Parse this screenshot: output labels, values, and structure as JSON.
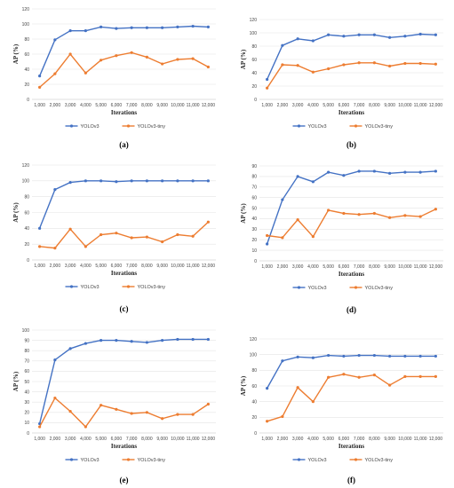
{
  "chart_data": [
    {
      "type": "line",
      "caption": "(a)",
      "categories": [
        "1,000",
        "2,000",
        "3,000",
        "4,000",
        "5,000",
        "6,000",
        "7,000",
        "8,000",
        "9,000",
        "10,000",
        "11,000",
        "12,000"
      ],
      "xlabel": "Iterations",
      "ylabel": "AP (%)",
      "ylim": [
        0,
        120
      ],
      "yticks": [
        0,
        20,
        40,
        60,
        80,
        100,
        120
      ],
      "grid": true,
      "legend": "bottom",
      "series": [
        {
          "name": "YOLOv3",
          "color": "#4472C4",
          "values": [
            31,
            79,
            91,
            91,
            96,
            94,
            95,
            95,
            95,
            96,
            97,
            96
          ]
        },
        {
          "name": "YOLOv3-tiny",
          "color": "#ED7D31",
          "values": [
            16,
            34,
            60,
            35,
            52,
            58,
            62,
            56,
            47,
            53,
            54,
            43
          ]
        }
      ]
    },
    {
      "type": "line",
      "caption": "(b)",
      "categories": [
        "1,000",
        "2,000",
        "3,000",
        "4,000",
        "5,000",
        "6,000",
        "7,000",
        "8,000",
        "9,000",
        "10,000",
        "11,000",
        "12,000"
      ],
      "xlabel": "Iterations",
      "ylabel": "AP (%)",
      "ylim": [
        0,
        120
      ],
      "yticks": [
        0,
        20,
        40,
        60,
        80,
        100,
        120
      ],
      "grid": true,
      "legend": "bottom",
      "series": [
        {
          "name": "YOLOv3",
          "color": "#4472C4",
          "values": [
            30,
            81,
            91,
            88,
            97,
            95,
            97,
            97,
            93,
            95,
            98,
            97
          ]
        },
        {
          "name": "YOLOv3-tiny",
          "color": "#ED7D31",
          "values": [
            17,
            52,
            51,
            41,
            46,
            52,
            55,
            55,
            50,
            54,
            54,
            53
          ]
        }
      ]
    },
    {
      "type": "line",
      "caption": "(c)",
      "categories": [
        "1,000",
        "2,000",
        "3,000",
        "4,000",
        "5,000",
        "6,000",
        "7,000",
        "8,000",
        "9,000",
        "10,000",
        "11,000",
        "12,000"
      ],
      "xlabel": "Iterations",
      "ylabel": "AP (%)",
      "ylim": [
        0,
        120
      ],
      "yticks": [
        0,
        20,
        40,
        60,
        80,
        100,
        120
      ],
      "grid": true,
      "legend": "bottom",
      "series": [
        {
          "name": "YOLOv3",
          "color": "#4472C4",
          "values": [
            40,
            89,
            98,
            100,
            100,
            99,
            100,
            100,
            100,
            100,
            100,
            100
          ]
        },
        {
          "name": "YOLOv3-tiny",
          "color": "#ED7D31",
          "values": [
            17,
            15,
            39,
            17,
            32,
            34,
            28,
            29,
            23,
            32,
            30,
            48
          ]
        }
      ]
    },
    {
      "type": "line",
      "caption": "(d)",
      "categories": [
        "1,000",
        "2,000",
        "3,000",
        "4,000",
        "5,000",
        "6,000",
        "7,000",
        "8,000",
        "9,000",
        "10,000",
        "11,000",
        "12,000"
      ],
      "xlabel": "Iterations",
      "ylabel": "AP (%)",
      "ylim": [
        0,
        90
      ],
      "yticks": [
        0,
        10,
        20,
        30,
        40,
        50,
        60,
        70,
        80,
        90
      ],
      "grid": true,
      "legend": "bottom",
      "series": [
        {
          "name": "YOLOv3",
          "color": "#4472C4",
          "values": [
            16,
            58,
            80,
            75,
            84,
            81,
            85,
            85,
            83,
            84,
            84,
            85
          ]
        },
        {
          "name": "YOLOv3-tiny",
          "color": "#ED7D31",
          "values": [
            24,
            22,
            39,
            23,
            48,
            45,
            44,
            45,
            41,
            43,
            42,
            49
          ]
        }
      ]
    },
    {
      "type": "line",
      "caption": "(e)",
      "categories": [
        "1,000",
        "2,000",
        "3,000",
        "4,000",
        "5,000",
        "6,000",
        "7,000",
        "8,000",
        "9,000",
        "10,000",
        "11,000",
        "12,000"
      ],
      "xlabel": "Iterations",
      "ylabel": "AP (%)",
      "ylim": [
        0,
        100
      ],
      "yticks": [
        0,
        10,
        20,
        30,
        40,
        50,
        60,
        70,
        80,
        90,
        100
      ],
      "grid": true,
      "legend": "bottom",
      "series": [
        {
          "name": "YOLOv3",
          "color": "#4472C4",
          "values": [
            9,
            71,
            82,
            87,
            90,
            90,
            89,
            88,
            90,
            91,
            91,
            91
          ]
        },
        {
          "name": "YOLOv3-tiny",
          "color": "#ED7D31",
          "values": [
            6,
            34,
            21,
            6,
            27,
            23,
            19,
            20,
            14,
            18,
            18,
            28
          ]
        }
      ]
    },
    {
      "type": "line",
      "caption": "(f)",
      "categories": [
        "1,000",
        "2,000",
        "3,000",
        "4,000",
        "5,000",
        "6,000",
        "7,000",
        "8,000",
        "9,000",
        "10,000",
        "11,000",
        "12,000"
      ],
      "xlabel": "Iterations",
      "ylabel": "AP (%)",
      "ylim": [
        0,
        120
      ],
      "yticks": [
        0,
        20,
        40,
        60,
        80,
        100,
        120
      ],
      "grid": true,
      "legend": "bottom",
      "series": [
        {
          "name": "YOLOv3",
          "color": "#4472C4",
          "values": [
            57,
            92,
            97,
            96,
            99,
            98,
            99,
            99,
            98,
            98,
            98,
            98
          ]
        },
        {
          "name": "YOLOv3-tiny",
          "color": "#ED7D31",
          "values": [
            15,
            21,
            58,
            40,
            71,
            75,
            71,
            74,
            61,
            72,
            72,
            72
          ]
        }
      ]
    }
  ]
}
